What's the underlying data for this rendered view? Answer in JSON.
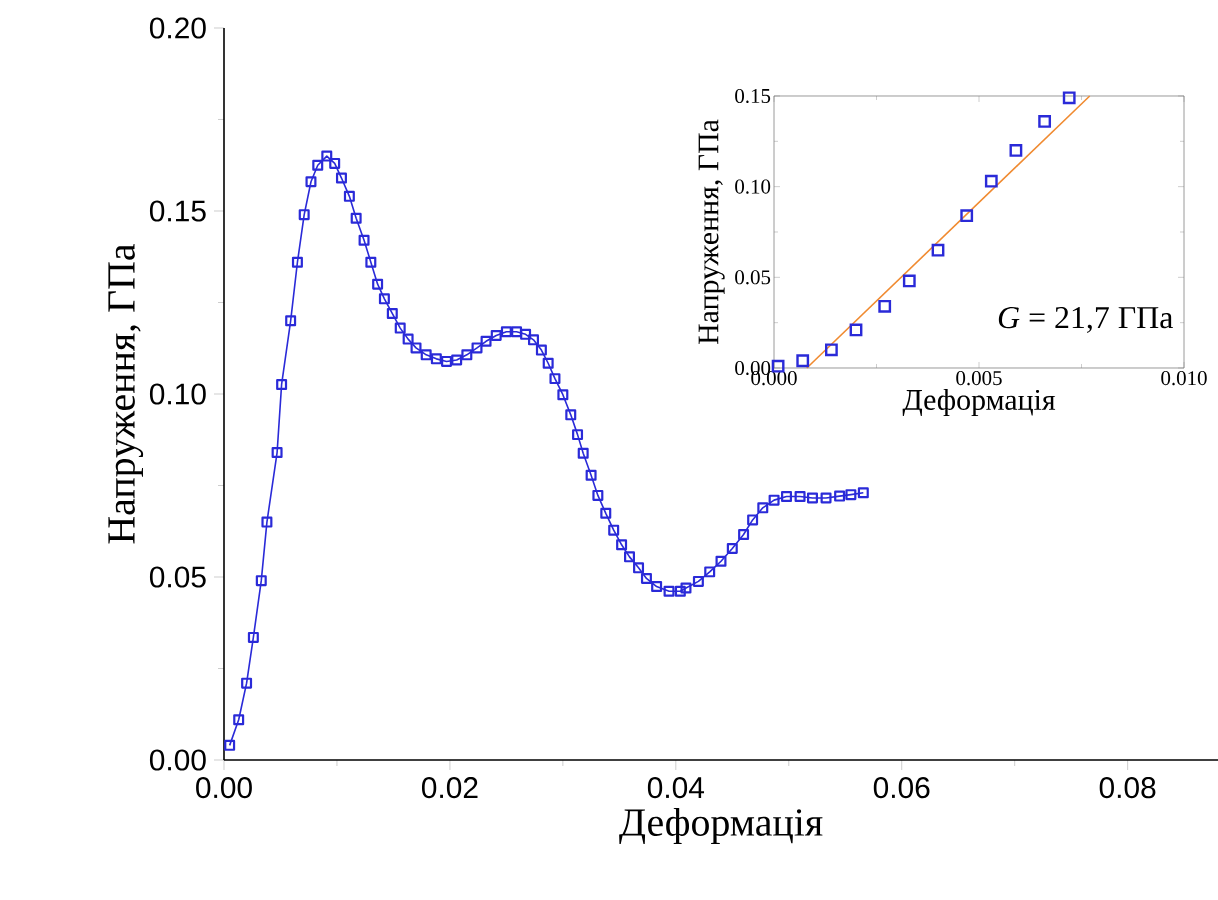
{
  "chart_data": [
    {
      "type": "line",
      "xlabel": "Деформація",
      "ylabel": "Напруження, ГПа",
      "marker": "square",
      "line_style": "solid",
      "xlim": [
        0,
        0.088
      ],
      "ylim": [
        0,
        0.2
      ],
      "xticks": [
        {
          "value": 0,
          "label": "0.00"
        },
        {
          "value": 0.02,
          "label": "0.02"
        },
        {
          "value": 0.04,
          "label": "0.04"
        },
        {
          "value": 0.06,
          "label": "0.06"
        },
        {
          "value": 0.08,
          "label": "0.08"
        }
      ],
      "yticks": [
        {
          "value": 0,
          "label": "0.00"
        },
        {
          "value": 0.05,
          "label": "0.05"
        },
        {
          "value": 0.1,
          "label": "0.10"
        },
        {
          "value": 0.15,
          "label": "0.15"
        },
        {
          "value": 0.2,
          "label": "0.20"
        }
      ],
      "x": [
        0.0005,
        0.0013,
        0.002,
        0.0026,
        0.0033,
        0.0038,
        0.0047,
        0.0051,
        0.0059,
        0.0065,
        0.0071,
        0.0077,
        0.0083,
        0.0091,
        0.0098,
        0.0104,
        0.0111,
        0.0117,
        0.0124,
        0.013,
        0.0136,
        0.0142,
        0.0149,
        0.0156,
        0.0163,
        0.017,
        0.0179,
        0.0188,
        0.0197,
        0.0206,
        0.0215,
        0.0224,
        0.0232,
        0.0241,
        0.025,
        0.0259,
        0.0267,
        0.0274,
        0.0281,
        0.0287,
        0.0293,
        0.03,
        0.0307,
        0.0313,
        0.0318,
        0.0325,
        0.0331,
        0.0338,
        0.0345,
        0.0352,
        0.0359,
        0.0367,
        0.0374,
        0.0383,
        0.0394,
        0.0404,
        0.0409,
        0.042,
        0.043,
        0.044,
        0.045,
        0.046,
        0.0468,
        0.0477,
        0.0487,
        0.0498,
        0.051,
        0.0521,
        0.0533,
        0.0545,
        0.0555,
        0.0566
      ],
      "series": [
        {
          "color": "#2a2ad8",
          "values": [
            0.004,
            0.011,
            0.021,
            0.0335,
            0.049,
            0.065,
            0.084,
            0.1026,
            0.12,
            0.136,
            0.149,
            0.158,
            0.1625,
            0.165,
            0.163,
            0.159,
            0.154,
            0.148,
            0.142,
            0.136,
            0.13,
            0.126,
            0.122,
            0.118,
            0.115,
            0.1126,
            0.1107,
            0.1096,
            0.1089,
            0.1093,
            0.1107,
            0.1126,
            0.1144,
            0.116,
            0.117,
            0.117,
            0.1163,
            0.1148,
            0.112,
            0.1084,
            0.1042,
            0.0998,
            0.0943,
            0.0889,
            0.0838,
            0.0778,
            0.0723,
            0.0674,
            0.0628,
            0.0588,
            0.0555,
            0.0525,
            0.0496,
            0.0474,
            0.0461,
            0.0461,
            0.047,
            0.0488,
            0.0514,
            0.0543,
            0.0578,
            0.0616,
            0.0656,
            0.0689,
            0.071,
            0.072,
            0.072,
            0.0716,
            0.0716,
            0.0721,
            0.0725,
            0.073
          ]
        }
      ]
    },
    {
      "type": "scatter",
      "xlabel": "Деформація",
      "ylabel": "Напруження, ГПа",
      "marker": "square",
      "xlim": [
        0,
        0.01
      ],
      "ylim": [
        0,
        0.15
      ],
      "xticks": [
        {
          "value": 0,
          "label": "0.000"
        },
        {
          "value": 0.005,
          "label": "0.005"
        },
        {
          "value": 0.01,
          "label": "0.010"
        }
      ],
      "yticks": [
        {
          "value": 0,
          "label": "0.00"
        },
        {
          "value": 0.05,
          "label": "0.05"
        },
        {
          "value": 0.1,
          "label": "0.10"
        },
        {
          "value": 0.15,
          "label": "0.15"
        }
      ],
      "annotations": [
        "*G* = 21,7 ГПа"
      ],
      "series": [
        {
          "type": "scatter",
          "color": "#2a2ad8",
          "x": [
            0.0001,
            0.0007,
            0.0014,
            0.002,
            0.0027,
            0.0033,
            0.004,
            0.0047,
            0.0053,
            0.0059,
            0.0066,
            0.0072
          ],
          "values": [
            0.001,
            0.004,
            0.01,
            0.021,
            0.034,
            0.048,
            0.065,
            0.084,
            0.103,
            0.12,
            0.136,
            0.149
          ]
        },
        {
          "type": "line",
          "color": "#f08a30",
          "marker": "none",
          "x": [
            0.0008,
            0.0077
          ],
          "values": [
            0,
            0.15
          ]
        }
      ]
    }
  ]
}
